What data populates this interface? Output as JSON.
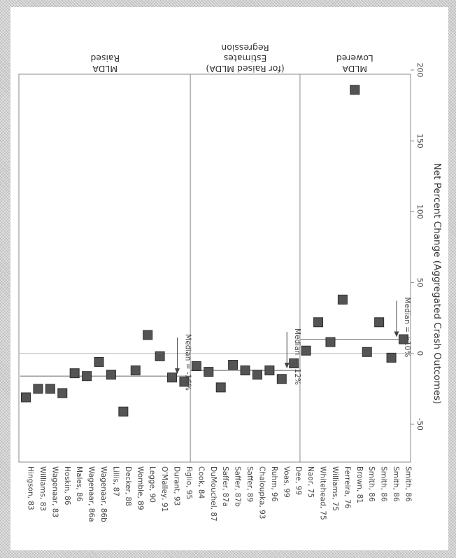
{
  "chart_data": {
    "type": "scatter",
    "xlabel": "Net Percent Change (Aggregated Crash Outcomes)",
    "xlim": [
      -50,
      200
    ],
    "ticks": [
      "-50",
      "0",
      "50",
      "100",
      "150",
      "200"
    ],
    "tick_values": [
      -50,
      0,
      50,
      100,
      150,
      200
    ],
    "groups": [
      {
        "label_lines": [
          "Lowered",
          "MLDA"
        ],
        "median_label": "Median = +10%",
        "median_value": 10,
        "studies": [
          {
            "name": "Smith, 86",
            "value": 10
          },
          {
            "name": "Smith, 86",
            "value": -3
          },
          {
            "name": "Smith, 86",
            "value": 22
          },
          {
            "name": "Smith, 86",
            "value": 1
          },
          {
            "name": "Brown, 81",
            "value": 186
          },
          {
            "name": "Ferreira, 76",
            "value": 38
          },
          {
            "name": "Williams, 75",
            "value": 8
          },
          {
            "name": "Whitehead, 75",
            "value": 22
          },
          {
            "name": "Naor, 75",
            "value": 2
          }
        ]
      },
      {
        "label_lines": [
          "Regression",
          "Estimates",
          "(for Raised MLDA)"
        ],
        "median_label": "Median = -12%",
        "median_value": -12,
        "studies": [
          {
            "name": "Dee, 99",
            "value": -7
          },
          {
            "name": "Voas, 99",
            "value": -18
          },
          {
            "name": "Ruhm, 96",
            "value": -12
          },
          {
            "name": "Chaloupka, 93",
            "value": -15
          },
          {
            "name": "Saffer, 89",
            "value": -12
          },
          {
            "name": "Saffer, 87b",
            "value": -8
          },
          {
            "name": "Saffer, 87a",
            "value": -24
          },
          {
            "name": "DuMouchel, 87",
            "value": -13
          },
          {
            "name": "Cook, 84",
            "value": -9
          }
        ]
      },
      {
        "label_lines": [
          "Raised",
          "MLDA"
        ],
        "median_label": "Median = -16%",
        "median_value": -16,
        "studies": [
          {
            "name": "Figlio, 95",
            "value": -20
          },
          {
            "name": "Durant, 93",
            "value": -17
          },
          {
            "name": "O'Malley, 91",
            "value": -2
          },
          {
            "name": "Legge, 90",
            "value": 13
          },
          {
            "name": "Womble, 89",
            "value": -12
          },
          {
            "name": "Decker, 88",
            "value": -41
          },
          {
            "name": "Lillis, 87",
            "value": -15
          },
          {
            "name": "Wagenaar, 86b",
            "value": -6
          },
          {
            "name": "Wagenaar, 86a",
            "value": -16
          },
          {
            "name": "Males, 86",
            "value": -14
          },
          {
            "name": "Hoskin, 86",
            "value": -28
          },
          {
            "name": "Wagenaar, 83",
            "value": -25
          },
          {
            "name": "Williams, 83",
            "value": -25
          },
          {
            "name": "Hingson, 83",
            "value": -31
          }
        ]
      }
    ],
    "colors": {
      "marker": "#545454",
      "marker_edge": "#2e2e2e",
      "line": "#7a7a7a",
      "text": "#444444"
    },
    "grid": false,
    "legend": "none"
  }
}
